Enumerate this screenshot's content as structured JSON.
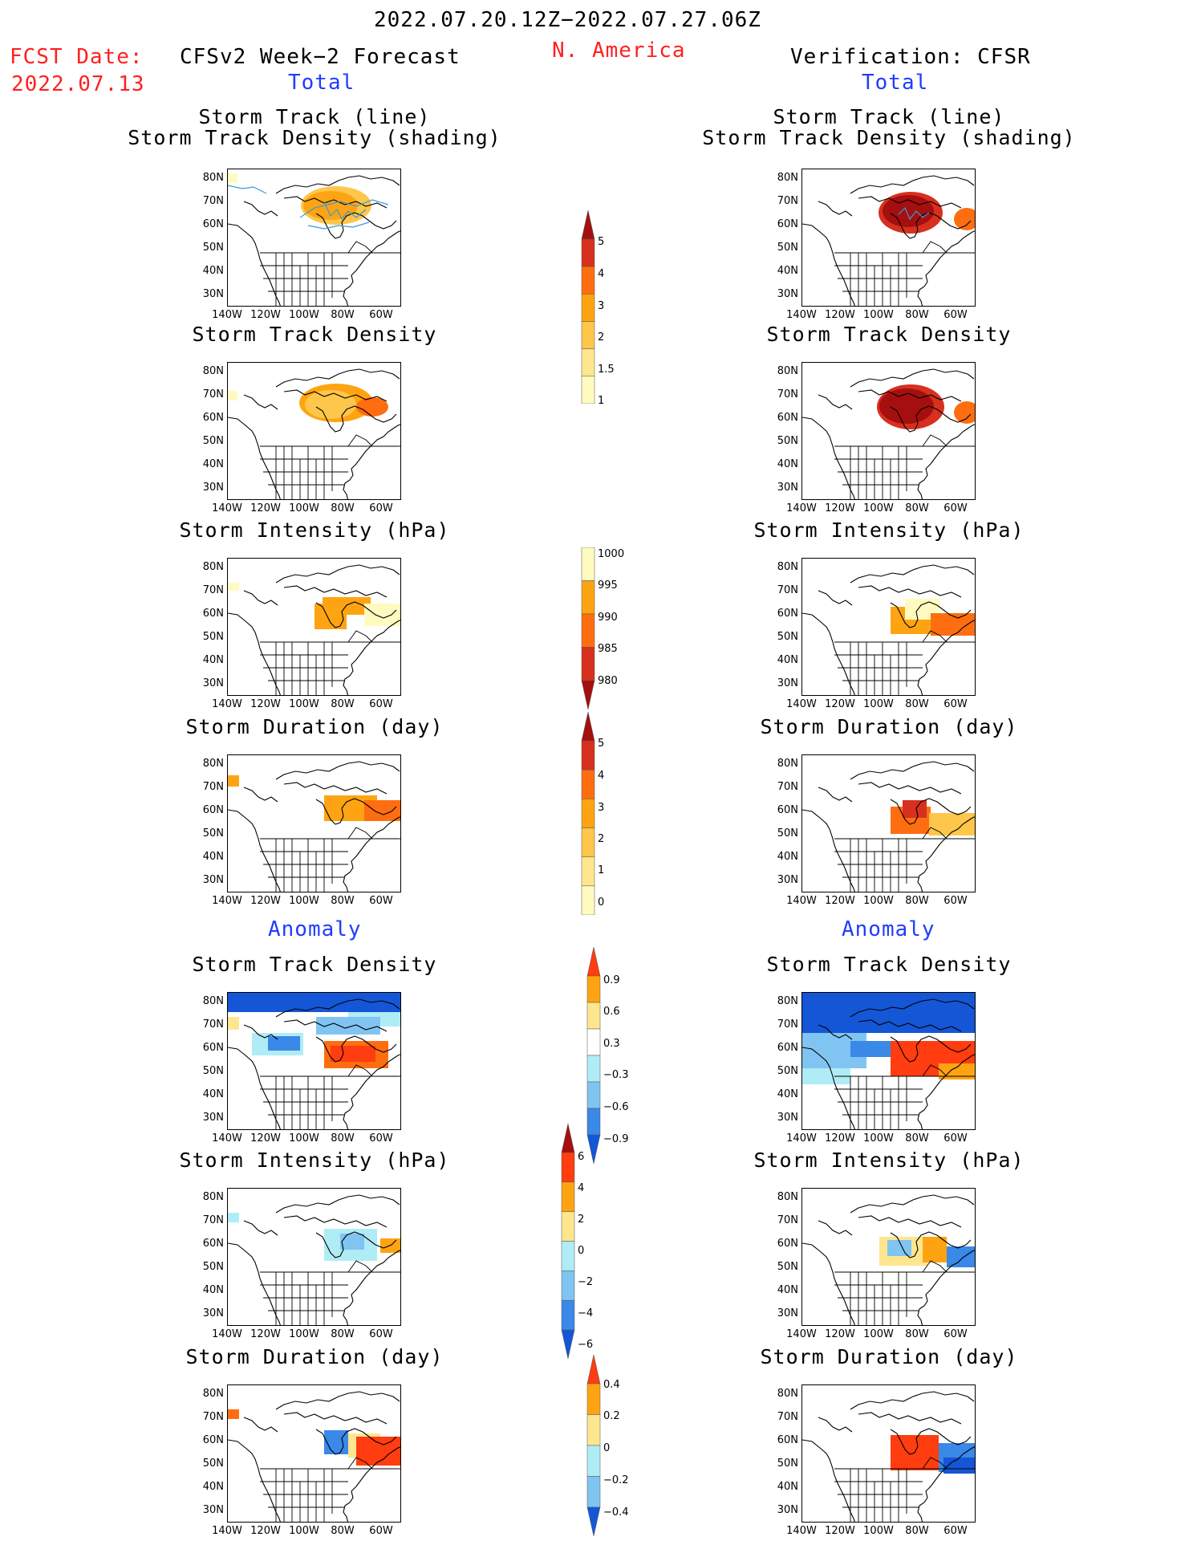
{
  "header": {
    "period": "2022.07.20.12Z−2022.07.27.06Z",
    "fcst_label": "FCST Date:",
    "fcst_date": "2022.07.13",
    "left_title": "CFSv2 Week−2 Forecast",
    "region": "N. America",
    "right_title": "Verification: CFSR",
    "total": "Total",
    "anomaly": "Anomaly"
  },
  "panel_titles": {
    "track_line": "Storm Track (line)",
    "track_density_shading": "Storm Track Density (shading)",
    "track_density": "Storm Track Density",
    "intensity": "Storm Intensity (hPa)",
    "duration": "Storm Duration (day)"
  },
  "axes": {
    "lat_labels": [
      "80N",
      "70N",
      "60N",
      "50N",
      "40N",
      "30N"
    ],
    "lon_labels": [
      "140W",
      "120W",
      "100W",
      "80W",
      "60W"
    ]
  },
  "colorbars": [
    {
      "id": "total_density",
      "labels": [
        "5",
        "4",
        "3",
        "2",
        "1.5",
        "1"
      ],
      "colors": [
        "#a50f0f",
        "#d7301f",
        "#fe6e10",
        "#fea412",
        "#fec64a",
        "#fee68e",
        "#fffbc0"
      ]
    },
    {
      "id": "total_intensity",
      "labels": [
        "1000",
        "995",
        "990",
        "985",
        "980"
      ],
      "colors": [
        "#fffbc0",
        "#fea412",
        "#fe6e10",
        "#d7301f",
        "#a50f0f"
      ]
    },
    {
      "id": "total_duration",
      "labels": [
        "5",
        "4",
        "3",
        "2",
        "1",
        "0"
      ],
      "colors": [
        "#a50f0f",
        "#d7301f",
        "#fe6e10",
        "#fea412",
        "#fec64a",
        "#fee68e",
        "#fffbc0"
      ]
    },
    {
      "id": "anom_density",
      "labels": [
        "0.9",
        "0.6",
        "0.3",
        "−0.3",
        "−0.6",
        "−0.9"
      ],
      "colors": [
        "#ff3d10",
        "#fea412",
        "#fee68e",
        "#ffffff",
        "#b0ecf5",
        "#80c4f2",
        "#3a88e8",
        "#1456d6"
      ]
    },
    {
      "id": "anom_intensity",
      "labels": [
        "6",
        "4",
        "2",
        "0",
        "−2",
        "−4",
        "−6"
      ],
      "colors": [
        "#a50f0f",
        "#ff3d10",
        "#fea412",
        "#fee68e",
        "#b0ecf5",
        "#80c4f2",
        "#3a88e8",
        "#1456d6"
      ]
    },
    {
      "id": "anom_duration",
      "labels": [
        "0.4",
        "0.2",
        "0",
        "−0.2",
        "−0.4"
      ],
      "colors": [
        "#ff3d10",
        "#fea412",
        "#fee68e",
        "#b0ecf5",
        "#80c4f2",
        "#1456d6"
      ]
    }
  ]
}
